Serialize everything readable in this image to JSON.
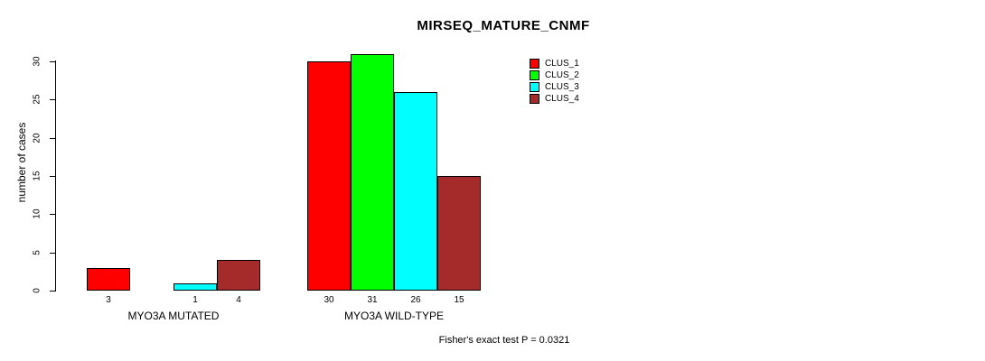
{
  "title": "MIRSEQ_MATURE_CNMF",
  "footer": "Fisher's exact test P = 0.0321",
  "chart_data": {
    "type": "bar",
    "title": "MIRSEQ_MATURE_CNMF",
    "ylabel": "number of cases",
    "xlabel": "",
    "ylim": [
      0,
      30
    ],
    "yticks": [
      0,
      5,
      10,
      15,
      20,
      25,
      30
    ],
    "grid": false,
    "legend_position": "top-right",
    "categories": [
      "MYO3A MUTATED",
      "MYO3A WILD-TYPE"
    ],
    "series": [
      {
        "name": "CLUS_1",
        "color": "#ff0000",
        "values": [
          3,
          30
        ]
      },
      {
        "name": "CLUS_2",
        "color": "#00ff00",
        "values": [
          0,
          31
        ]
      },
      {
        "name": "CLUS_3",
        "color": "#00ffff",
        "values": [
          1,
          26
        ]
      },
      {
        "name": "CLUS_4",
        "color": "#a52a2a",
        "values": [
          4,
          15
        ]
      }
    ],
    "bar_value_labels": [
      [
        "3",
        "",
        "1",
        "4"
      ],
      [
        "30",
        "31",
        "26",
        "15"
      ]
    ],
    "annotation": "Fisher's exact test P = 0.0321"
  }
}
